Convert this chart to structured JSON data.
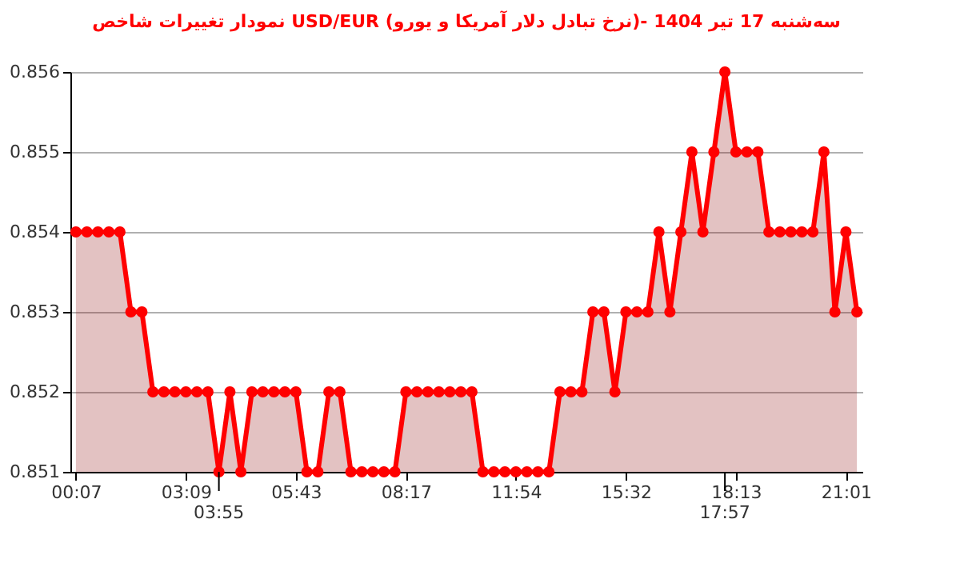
{
  "chart_data": {
    "type": "area",
    "title": "نمودار تغییرات شاخص USD/EUR (نرخ تبادل دلار آمریکا و یورو)- سه‌شنبه  17 تیر 1404",
    "categories": [
      "00:07",
      null,
      null,
      null,
      null,
      null,
      null,
      null,
      null,
      null,
      "03:09",
      null,
      null,
      "03:55",
      null,
      null,
      null,
      null,
      null,
      null,
      "05:43",
      null,
      null,
      null,
      null,
      null,
      null,
      null,
      null,
      null,
      "08:17",
      null,
      null,
      null,
      null,
      null,
      null,
      null,
      null,
      null,
      "11:54",
      null,
      null,
      null,
      null,
      null,
      null,
      null,
      null,
      null,
      "15:32",
      null,
      null,
      null,
      null,
      null,
      null,
      null,
      null,
      "17:57",
      "18:13",
      null,
      null,
      null,
      null,
      null,
      null,
      null,
      null,
      null,
      "21:01",
      null
    ],
    "series": [
      {
        "color": "#ff0000",
        "values": [
          0.854,
          0.854,
          0.854,
          0.854,
          0.854,
          0.853,
          0.853,
          0.852,
          0.852,
          0.852,
          0.852,
          0.852,
          0.852,
          0.851,
          0.852,
          0.851,
          0.852,
          0.852,
          0.852,
          0.852,
          0.852,
          0.851,
          0.851,
          0.852,
          0.852,
          0.851,
          0.851,
          0.851,
          0.851,
          0.851,
          0.852,
          0.852,
          0.852,
          0.852,
          0.852,
          0.852,
          0.852,
          0.851,
          0.851,
          0.851,
          0.851,
          0.851,
          0.851,
          0.851,
          0.852,
          0.852,
          0.852,
          0.853,
          0.853,
          0.852,
          0.853,
          0.853,
          0.853,
          0.854,
          0.853,
          0.854,
          0.855,
          0.854,
          0.855,
          0.856,
          0.855,
          0.855,
          0.855,
          0.854,
          0.854,
          0.854,
          0.854,
          0.854,
          0.855,
          0.853,
          0.854,
          0.853
        ]
      }
    ],
    "ylim": [
      0.851,
      0.856
    ],
    "yticks": [
      0.851,
      0.852,
      0.853,
      0.854,
      0.855,
      0.856
    ],
    "grid": "y",
    "marker": "circle",
    "line_style": "solid"
  }
}
